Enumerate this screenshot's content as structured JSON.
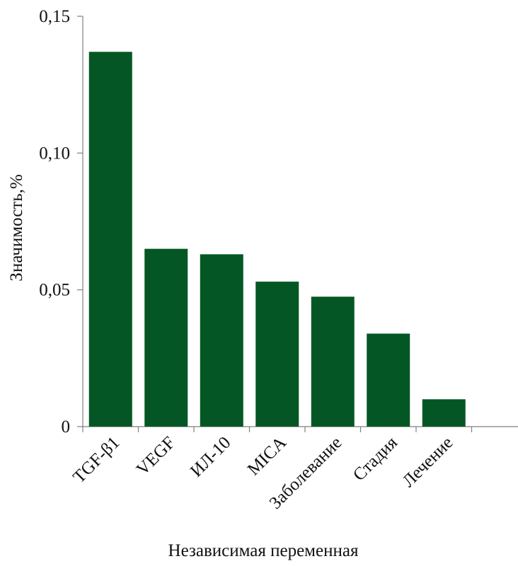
{
  "chart_data": {
    "type": "bar",
    "title": "",
    "xlabel": "Независимая переменная",
    "ylabel": "Значимость,%",
    "categories": [
      "TGF-β1",
      "VEGF",
      "ИЛ-10",
      "MICA",
      "Заболевание",
      "Стадия",
      "Лечение"
    ],
    "values": [
      0.137,
      0.065,
      0.063,
      0.053,
      0.0475,
      0.034,
      0.01
    ],
    "ylim": [
      0,
      0.15
    ],
    "yticks": [
      0,
      0.05,
      0.1,
      0.15
    ],
    "ytick_labels": [
      "0",
      "0,05",
      "0,10",
      "0,15"
    ],
    "bar_color": "#045724",
    "axis_color": "#808080",
    "grid": false,
    "legend": "none"
  }
}
